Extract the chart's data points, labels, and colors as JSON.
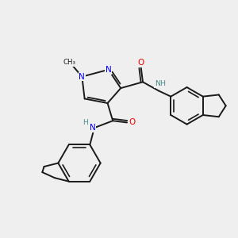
{
  "background_color": "#efefef",
  "bond_color": "#1a1a1a",
  "nitrogen_color": "#0000ee",
  "oxygen_color": "#ee0000",
  "hydrogen_color": "#4a8a8a",
  "figsize": [
    3.0,
    3.0
  ],
  "dpi": 100,
  "xlim": [
    20,
    290
  ],
  "ylim": [
    20,
    280
  ]
}
